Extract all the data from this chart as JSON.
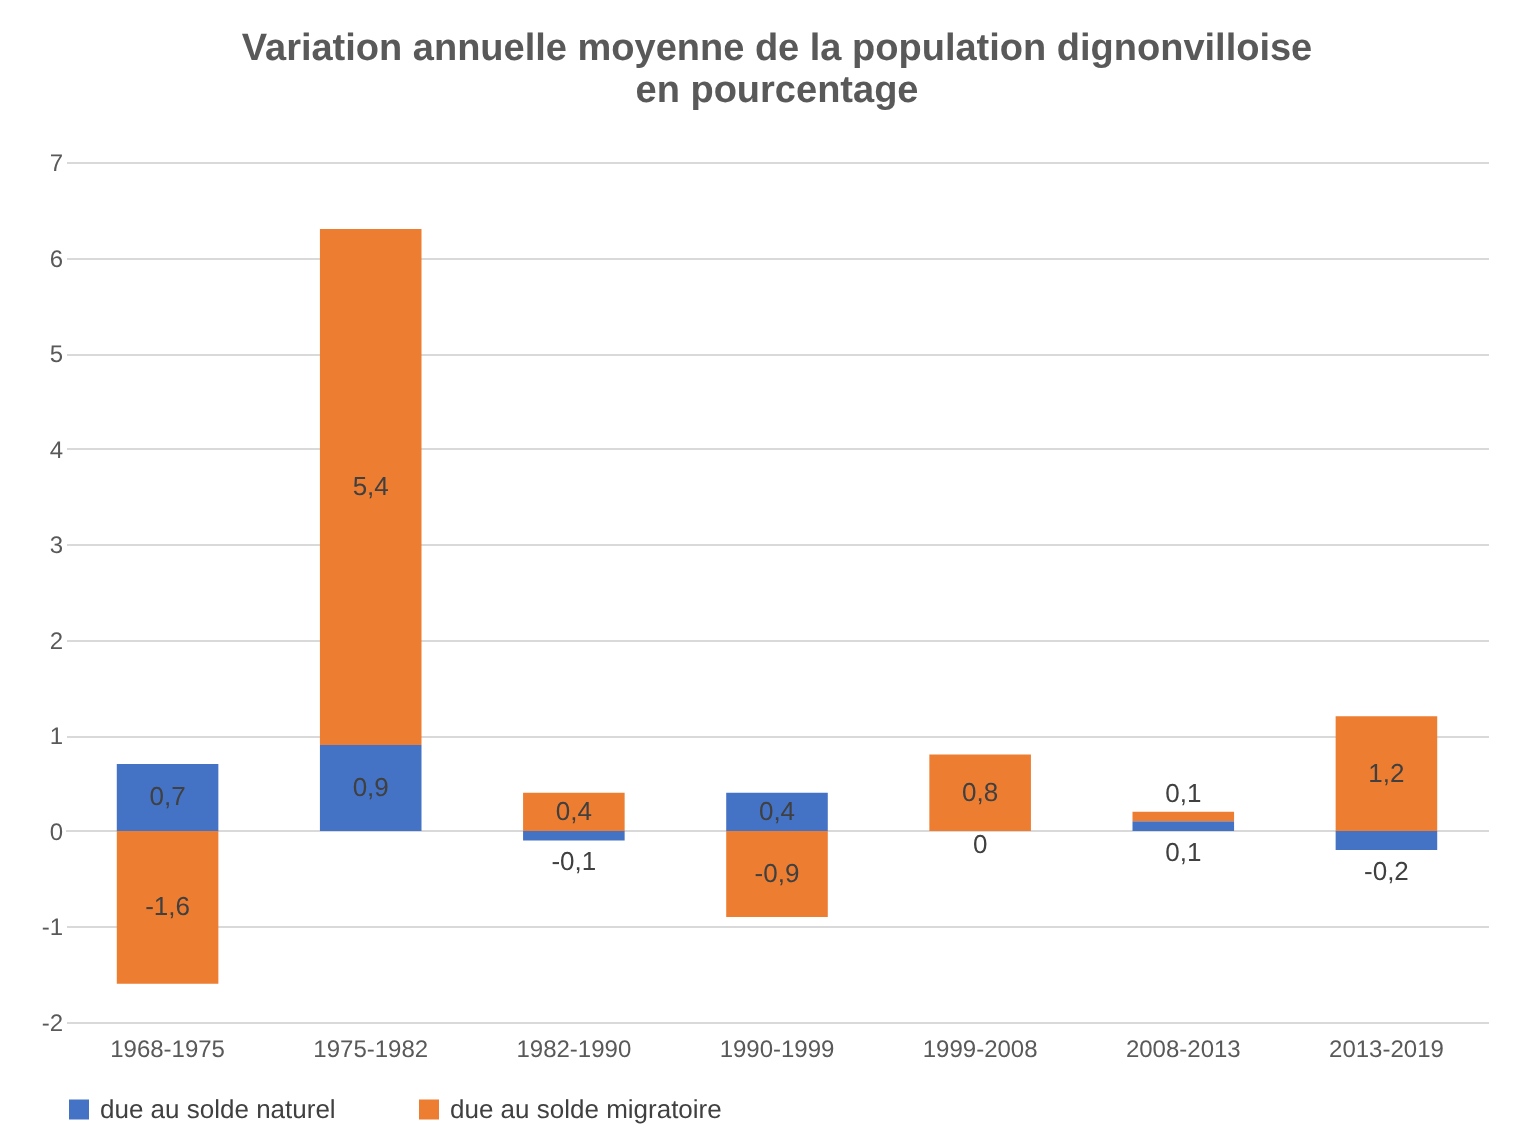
{
  "chart_data": {
    "type": "bar",
    "stacked": true,
    "title": "Variation annuelle moyenne de la population dignonvilloise\nen pourcentage",
    "categories": [
      "1968-1975",
      "1975-1982",
      "1982-1990",
      "1990-1999",
      "1999-2008",
      "2008-2013",
      "2013-2019"
    ],
    "series": [
      {
        "name": "due au solde naturel",
        "color": "#4472c4",
        "values": [
          0.7,
          0.9,
          -0.1,
          0.4,
          0,
          0.1,
          -0.2
        ],
        "value_labels": [
          "0,7",
          "0,9",
          "-0,1",
          "0,4",
          "0",
          "0,1",
          "-0,2"
        ]
      },
      {
        "name": "due au solde migratoire",
        "color": "#ed7d31",
        "values": [
          -1.6,
          5.4,
          0.4,
          -0.9,
          0.8,
          0.1,
          1.2
        ],
        "value_labels": [
          "-1,6",
          "5,4",
          "0,4",
          "-0,9",
          "0,8",
          "0,1",
          "1,2"
        ]
      }
    ],
    "ylim": [
      -2,
      7
    ],
    "yticks": [
      -2,
      -1,
      0,
      1,
      2,
      3,
      4,
      5,
      6,
      7
    ],
    "grid": "y",
    "legend": "bottom"
  }
}
